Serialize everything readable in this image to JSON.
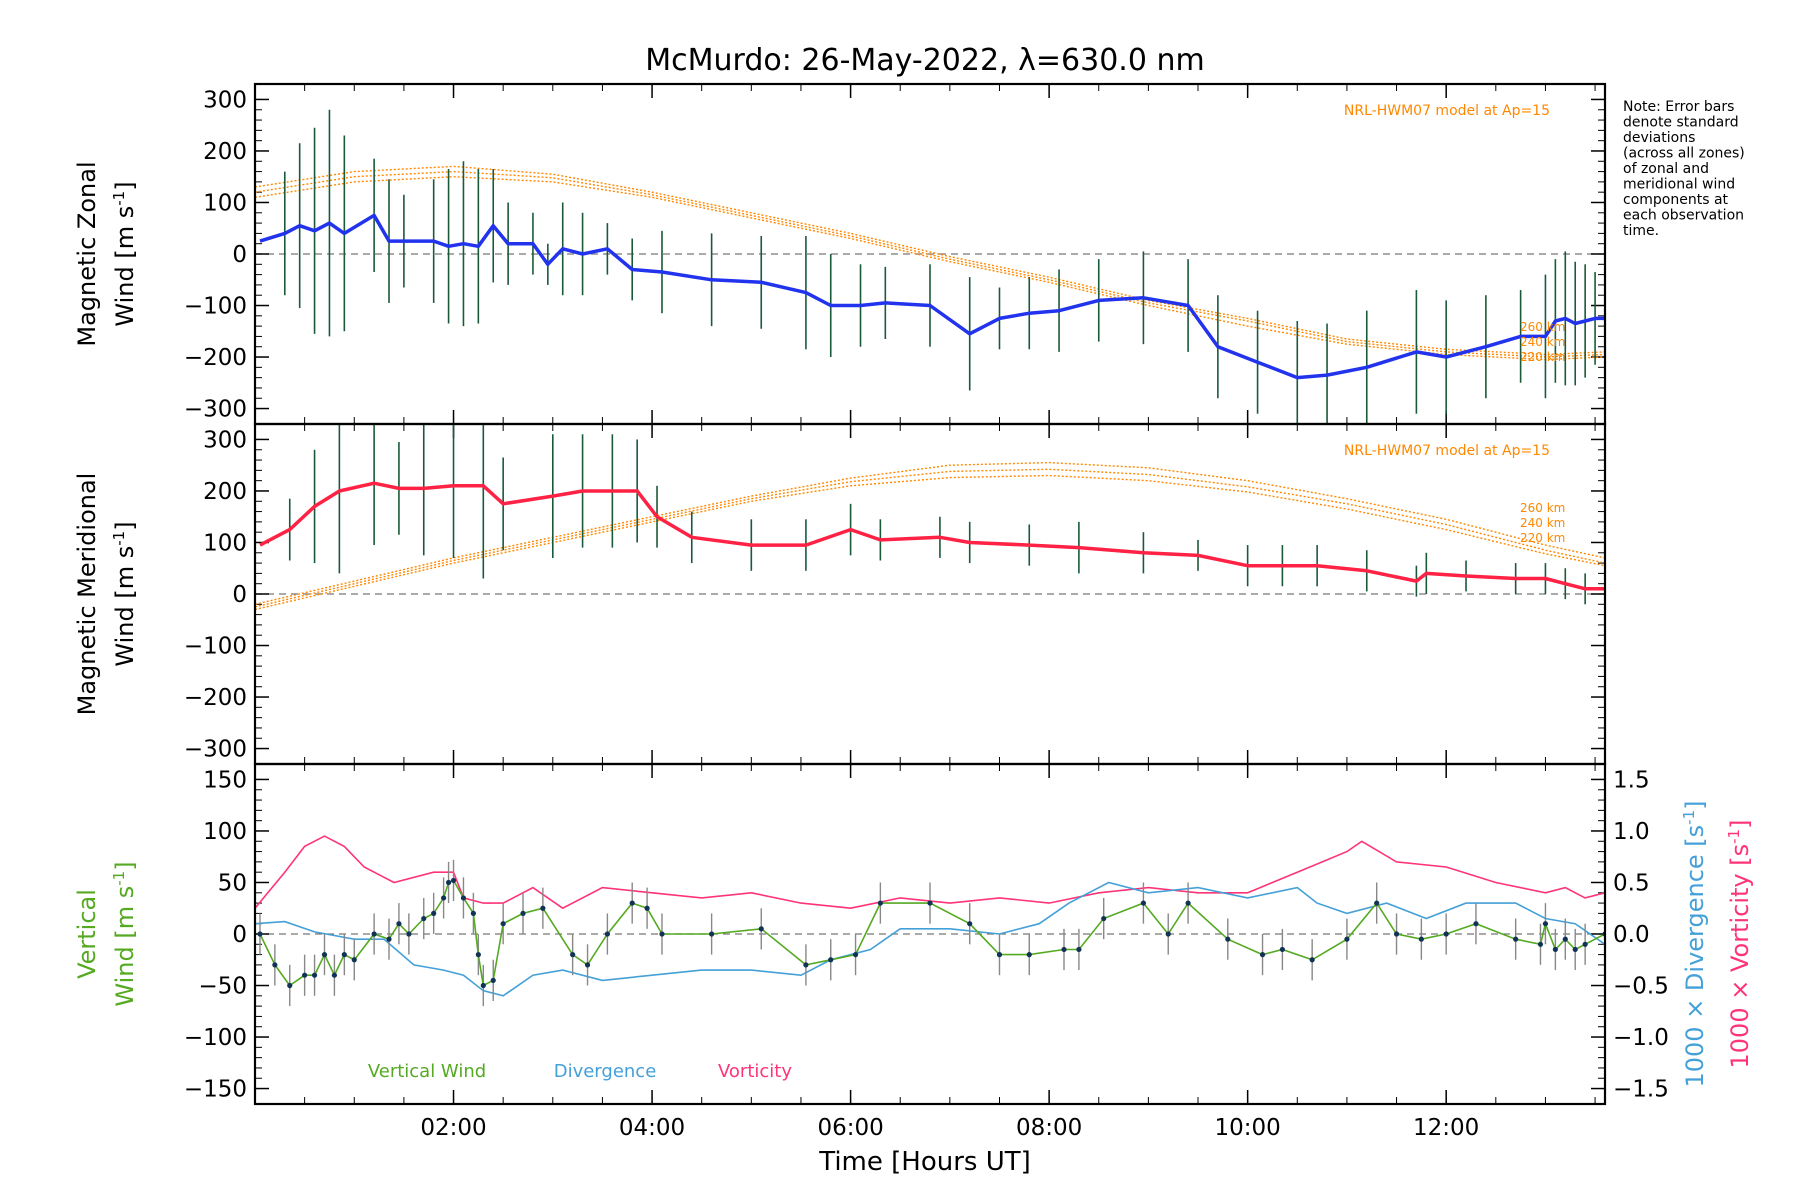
{
  "title": "McMurdo: 26-May-2022, λ=630.0 nm",
  "note_lines": [
    "Note: Error bars",
    "denote standard",
    "deviations",
    "(across all zones)",
    "of zonal and",
    "meridional wind",
    "components at",
    "each observation",
    "time."
  ],
  "model_label": "NRL-HWM07 model at Ap=15",
  "altitude_labels": [
    "260 km",
    "240 km",
    "220 km"
  ],
  "x_axis": {
    "label": "Time [Hours UT]",
    "ticks": [
      "02:00",
      "04:00",
      "06:00",
      "08:00",
      "10:00",
      "12:00"
    ],
    "tick_hours": [
      2,
      4,
      6,
      8,
      10,
      12
    ],
    "range_hours": [
      0,
      13.6
    ]
  },
  "colors": {
    "zonal": "#2233ee",
    "meridional": "#ff2244",
    "vertical": "#55aa22",
    "divergence": "#44a0d8",
    "vorticity": "#ff3377",
    "model": "#ff8800",
    "errbar": "#1a5a3a"
  },
  "chart_data": [
    {
      "type": "line",
      "name": "zonal",
      "ylabel": "Magnetic Zonal Wind [m s-1]",
      "ylabel_line1": "Magnetic Zonal",
      "ylabel_line2": "Wind [m s",
      "ylabel_sup": "-1",
      "ylabel_close": "]",
      "ylim": [
        -330,
        330
      ],
      "yticks": [
        -300,
        -200,
        -100,
        0,
        100,
        200,
        300
      ],
      "x": [
        0.05,
        0.3,
        0.45,
        0.6,
        0.75,
        0.9,
        1.2,
        1.35,
        1.5,
        1.8,
        1.95,
        2.1,
        2.25,
        2.4,
        2.55,
        2.8,
        2.95,
        3.1,
        3.3,
        3.55,
        3.8,
        4.1,
        4.6,
        5.1,
        5.55,
        5.8,
        6.1,
        6.35,
        6.8,
        7.2,
        7.5,
        7.8,
        8.1,
        8.5,
        8.95,
        9.4,
        9.7,
        10.1,
        10.5,
        10.8,
        11.2,
        11.7,
        12.0,
        12.4,
        12.75,
        13.0,
        13.1,
        13.2,
        13.3,
        13.4,
        13.5,
        13.6
      ],
      "values": [
        25,
        40,
        55,
        45,
        60,
        40,
        75,
        25,
        25,
        25,
        15,
        20,
        15,
        55,
        20,
        20,
        -20,
        10,
        0,
        10,
        -30,
        -35,
        -50,
        -55,
        -75,
        -100,
        -100,
        -95,
        -100,
        -155,
        -125,
        -115,
        -110,
        -90,
        -85,
        -100,
        -180,
        -210,
        -240,
        -235,
        -220,
        -190,
        -200,
        -180,
        -160,
        -160,
        -130,
        -125,
        -135,
        -130,
        -125,
        -125
      ],
      "errors": [
        0,
        120,
        160,
        200,
        220,
        190,
        110,
        120,
        90,
        120,
        150,
        160,
        150,
        110,
        80,
        60,
        40,
        90,
        80,
        50,
        60,
        80,
        90,
        90,
        110,
        100,
        80,
        70,
        80,
        110,
        60,
        70,
        80,
        80,
        90,
        90,
        100,
        100,
        110,
        100,
        110,
        120,
        110,
        100,
        90,
        120,
        120,
        130,
        120,
        110,
        90,
        0
      ],
      "model": {
        "x": [
          0,
          1,
          2,
          3,
          4,
          5,
          6,
          7,
          8,
          9,
          10,
          11,
          12,
          13,
          13.6
        ],
        "series": [
          {
            "name": "260 km",
            "values": [
              130,
              160,
              170,
              155,
              120,
              80,
              40,
              -5,
              -45,
              -90,
              -125,
              -165,
              -185,
              -195,
              -190
            ]
          },
          {
            "name": "240 km",
            "values": [
              120,
              150,
              160,
              148,
              115,
              75,
              35,
              -10,
              -50,
              -95,
              -130,
              -170,
              -190,
              -200,
              -195
            ]
          },
          {
            "name": "220 km",
            "values": [
              110,
              140,
              150,
              140,
              110,
              70,
              30,
              -15,
              -55,
              -100,
              -140,
              -175,
              -195,
              -205,
              -200
            ]
          }
        ]
      }
    },
    {
      "type": "line",
      "name": "meridional",
      "ylabel": "Magnetic Meridional Wind [m s-1]",
      "ylabel_line1": "Magnetic Meridional",
      "ylabel_line2": "Wind [m s",
      "ylabel_sup": "-1",
      "ylabel_close": "]",
      "ylim": [
        -330,
        330
      ],
      "yticks": [
        -300,
        -200,
        -100,
        0,
        100,
        200,
        300
      ],
      "x": [
        0.05,
        0.35,
        0.6,
        0.85,
        1.2,
        1.45,
        1.7,
        2.0,
        2.3,
        2.5,
        3.0,
        3.3,
        3.6,
        3.85,
        4.05,
        4.4,
        5.0,
        5.55,
        6.0,
        6.3,
        6.9,
        7.2,
        7.8,
        8.3,
        8.95,
        9.5,
        10.0,
        10.35,
        10.7,
        11.2,
        11.7,
        11.8,
        12.2,
        12.7,
        13.0,
        13.2,
        13.4,
        13.6
      ],
      "values": [
        95,
        125,
        170,
        200,
        215,
        205,
        205,
        210,
        210,
        175,
        190,
        200,
        200,
        200,
        150,
        110,
        95,
        95,
        125,
        105,
        110,
        100,
        95,
        90,
        80,
        75,
        55,
        55,
        55,
        45,
        25,
        40,
        35,
        30,
        30,
        20,
        10,
        10
      ],
      "errors": [
        0,
        60,
        110,
        160,
        120,
        90,
        130,
        140,
        180,
        90,
        120,
        110,
        110,
        100,
        60,
        50,
        50,
        50,
        50,
        40,
        40,
        40,
        40,
        50,
        40,
        30,
        40,
        40,
        40,
        40,
        30,
        40,
        30,
        30,
        30,
        30,
        30,
        0
      ],
      "model": {
        "x": [
          0,
          1,
          2,
          3,
          4,
          5,
          6,
          7,
          8,
          9,
          10,
          11,
          12,
          13,
          13.6
        ],
        "series": [
          {
            "name": "260 km",
            "values": [
              -20,
              25,
              70,
              110,
              150,
              190,
              225,
              250,
              255,
              245,
              220,
              185,
              145,
              95,
              70
            ]
          },
          {
            "name": "240 km",
            "values": [
              -25,
              20,
              65,
              105,
              145,
              185,
              218,
              238,
              242,
              232,
              208,
              175,
              135,
              85,
              60
            ]
          },
          {
            "name": "220 km",
            "values": [
              -30,
              15,
              60,
              100,
              140,
              180,
              210,
              226,
              230,
              220,
              198,
              165,
              125,
              78,
              55
            ]
          }
        ]
      }
    },
    {
      "type": "line",
      "name": "vertical",
      "ylabel_left_line1": "Vertical",
      "ylabel_left_line2": "Wind [m s",
      "ylabel_sup": "-1",
      "ylabel_close": "]",
      "ylabel_right1": "1000 × Divergence [s",
      "ylabel_right2": "1000 × Vorticity [s",
      "ylim": [
        -165,
        165
      ],
      "yticks": [
        -150,
        -100,
        -50,
        0,
        50,
        100,
        150
      ],
      "y2lim": [
        -1.65,
        1.65
      ],
      "y2ticks": [
        -1.5,
        -1.0,
        -0.5,
        0.0,
        0.5,
        1.0,
        1.5
      ],
      "y2ticklabels": [
        "−1.5",
        "−1.0",
        "−0.5",
        "0.0",
        "0.5",
        "1.0",
        "1.5"
      ],
      "legend": [
        "Vertical Wind",
        "Divergence",
        "Vorticity"
      ],
      "series": [
        {
          "name": "Vertical Wind",
          "axis": "left",
          "x": [
            0.05,
            0.2,
            0.35,
            0.5,
            0.6,
            0.7,
            0.8,
            0.9,
            1.0,
            1.2,
            1.35,
            1.45,
            1.55,
            1.7,
            1.8,
            1.9,
            1.95,
            2.0,
            2.1,
            2.2,
            2.25,
            2.3,
            2.4,
            2.5,
            2.7,
            2.9,
            3.2,
            3.35,
            3.55,
            3.8,
            3.95,
            4.1,
            4.6,
            5.1,
            5.55,
            5.8,
            6.05,
            6.3,
            6.8,
            7.2,
            7.5,
            7.8,
            8.15,
            8.3,
            8.55,
            8.95,
            9.2,
            9.4,
            9.8,
            10.15,
            10.35,
            10.65,
            11.0,
            11.3,
            11.5,
            11.75,
            12.0,
            12.3,
            12.7,
            12.95,
            13.0,
            13.1,
            13.2,
            13.3,
            13.4,
            13.6
          ],
          "values": [
            0,
            -30,
            -50,
            -40,
            -40,
            -20,
            -40,
            -20,
            -25,
            0,
            -5,
            10,
            0,
            15,
            20,
            35,
            50,
            52,
            35,
            20,
            -20,
            -50,
            -45,
            10,
            20,
            25,
            -20,
            -30,
            0,
            30,
            25,
            0,
            0,
            5,
            -30,
            -25,
            -20,
            30,
            30,
            10,
            -20,
            -20,
            -15,
            -15,
            15,
            30,
            0,
            30,
            -5,
            -20,
            -15,
            -25,
            -5,
            30,
            0,
            -5,
            0,
            10,
            -5,
            -10,
            10,
            -15,
            -5,
            -15,
            -10,
            0
          ]
        },
        {
          "name": "Divergence",
          "axis": "right",
          "x": [
            0,
            0.3,
            0.6,
            1.0,
            1.3,
            1.6,
            1.9,
            2.1,
            2.3,
            2.5,
            2.8,
            3.1,
            3.5,
            4.0,
            4.5,
            5.0,
            5.5,
            5.8,
            6.2,
            6.5,
            7.0,
            7.5,
            7.9,
            8.2,
            8.6,
            9.0,
            9.5,
            10.0,
            10.5,
            10.7,
            11.0,
            11.4,
            11.8,
            12.2,
            12.7,
            13.0,
            13.3,
            13.6
          ],
          "x_note": "hours UT",
          "values": [
            0.1,
            0.12,
            0.02,
            -0.05,
            -0.05,
            -0.3,
            -0.35,
            -0.4,
            -0.55,
            -0.6,
            -0.4,
            -0.35,
            -0.45,
            -0.4,
            -0.35,
            -0.35,
            -0.4,
            -0.25,
            -0.15,
            0.05,
            0.05,
            0.0,
            0.1,
            0.3,
            0.5,
            0.4,
            0.45,
            0.35,
            0.45,
            0.3,
            0.2,
            0.3,
            0.15,
            0.3,
            0.3,
            0.15,
            0.1,
            -0.1
          ]
        },
        {
          "name": "Vorticity",
          "axis": "right",
          "x": [
            0,
            0.3,
            0.5,
            0.7,
            0.9,
            1.1,
            1.4,
            1.8,
            2.0,
            2.1,
            2.3,
            2.5,
            2.8,
            3.1,
            3.5,
            4.0,
            4.5,
            5.0,
            5.5,
            6.0,
            6.5,
            7.0,
            7.5,
            8.0,
            8.5,
            9.0,
            9.5,
            10.0,
            10.5,
            11.0,
            11.15,
            11.5,
            12.0,
            12.5,
            13.0,
            13.2,
            13.4,
            13.6
          ],
          "values": [
            0.25,
            0.6,
            0.85,
            0.95,
            0.85,
            0.65,
            0.5,
            0.6,
            0.6,
            0.35,
            0.3,
            0.3,
            0.45,
            0.25,
            0.45,
            0.4,
            0.35,
            0.4,
            0.3,
            0.25,
            0.35,
            0.3,
            0.35,
            0.3,
            0.4,
            0.45,
            0.4,
            0.4,
            0.6,
            0.8,
            0.9,
            0.7,
            0.65,
            0.5,
            0.4,
            0.45,
            0.35,
            0.4
          ]
        }
      ]
    }
  ]
}
